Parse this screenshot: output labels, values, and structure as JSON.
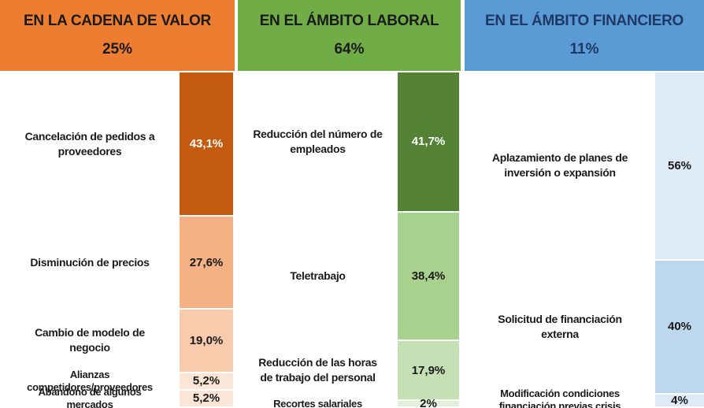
{
  "panels": [
    {
      "title": "EN LA CADENA DE VALOR",
      "share": {
        "value": 25,
        "label": "25%"
      },
      "color": "#ED7D31",
      "title_color": "#1a1a1a",
      "items": [
        {
          "label": "Cancelación de pedidos a proveedores",
          "value": 43.1,
          "value_label": "43,1%",
          "color": "#C55A11",
          "text_color": "#ffffff"
        },
        {
          "label": "Disminución de precios",
          "value": 27.6,
          "value_label": "27,6%",
          "color": "#F4B183",
          "text_color": "#1a1a1a"
        },
        {
          "label": "Cambio de modelo de negocio",
          "value": 19.0,
          "value_label": "19,0%",
          "color": "#F8CBAD",
          "text_color": "#1a1a1a"
        },
        {
          "label": "Alianzas competidores/proveedores",
          "value": 5.2,
          "value_label": "5,2%",
          "color": "#FBE5D6",
          "text_color": "#1a1a1a"
        },
        {
          "label": "Abandono de algunos mercados",
          "value": 5.2,
          "value_label": "5,2%",
          "color": "#FBE5D6",
          "text_color": "#1a1a1a"
        }
      ]
    },
    {
      "title": "EN EL ÁMBITO LABORAL",
      "share": {
        "value": 64,
        "label": "64%"
      },
      "color": "#70AD47",
      "title_color": "#1a1a1a",
      "items": [
        {
          "label": "Reducción del número de empleados",
          "value": 41.7,
          "value_label": "41,7%",
          "color": "#548235",
          "text_color": "#ffffff"
        },
        {
          "label": "Teletrabajo",
          "value": 38.4,
          "value_label": "38,4%",
          "color": "#A9D18E",
          "text_color": "#1a1a1a"
        },
        {
          "label": "Reducción de las horas de trabajo del personal",
          "value": 17.9,
          "value_label": "17,9%",
          "color": "#C5E0B4",
          "text_color": "#1a1a1a"
        },
        {
          "label": "Recortes salariales",
          "value": 2,
          "value_label": "2%",
          "color": "#E2F0D9",
          "text_color": "#1a1a1a"
        }
      ]
    },
    {
      "title": "EN EL ÁMBITO FINANCIERO",
      "share": {
        "value": 11,
        "label": "11%"
      },
      "color": "#5B9BD5",
      "title_color": "#1F3864",
      "items": [
        {
          "label": "Aplazamiento de planes de inversión o expansión",
          "value": 56,
          "value_label": "56%",
          "color": "#DEEBF7",
          "text_color": "#1a1a1a"
        },
        {
          "label": "Solicitud de financiación externa",
          "value": 40,
          "value_label": "40%",
          "color": "#BDD7EE",
          "text_color": "#1a1a1a"
        },
        {
          "label": "Modificación condiciones financiación previas crisis",
          "value": 4,
          "value_label": "4%",
          "color": "#DEEBF7",
          "text_color": "#1a1a1a"
        }
      ]
    }
  ]
}
